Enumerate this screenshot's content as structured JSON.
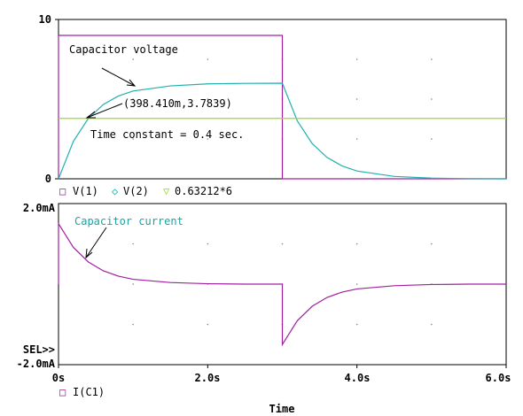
{
  "colors": {
    "v1": "#a020a0",
    "v2": "#20b0b0",
    "ref": "#99dd22",
    "i": "#a020a0",
    "axis": "#000000",
    "grid": "#808080"
  },
  "chart_data": [
    {
      "type": "line",
      "x_unit": "s",
      "xlim": [
        0,
        6.0
      ],
      "ylim": [
        0,
        10
      ],
      "y_ticks": [
        "0",
        "10"
      ],
      "grid": "dotted",
      "series": [
        {
          "name": "V(1)",
          "marker": "□",
          "x": [
            0,
            0,
            3.0,
            3.0,
            6.0
          ],
          "values": [
            0,
            9,
            9,
            0,
            0
          ]
        },
        {
          "name": "V(2)",
          "marker": "◇",
          "x": [
            0,
            0.2,
            0.4,
            0.6,
            0.8,
            1.0,
            1.5,
            2.0,
            2.5,
            3.0,
            3.2,
            3.4,
            3.6,
            3.8,
            4.0,
            4.5,
            5.0,
            5.5,
            6.0
          ],
          "values": [
            0,
            2.36,
            3.79,
            4.66,
            5.19,
            5.51,
            5.83,
            5.96,
            5.99,
            6.0,
            3.64,
            2.21,
            1.34,
            0.81,
            0.49,
            0.15,
            0.04,
            0.01,
            0.0
          ]
        },
        {
          "name": "0.63212*6",
          "marker": "▽",
          "x": [
            0,
            6.0
          ],
          "values": [
            3.79,
            3.79
          ]
        }
      ],
      "annotations": {
        "capacitor_voltage": "Capacitor voltage",
        "point": "(398.410m,3.7839)",
        "time_constant": "Time constant = 0.4 sec."
      }
    },
    {
      "type": "line",
      "x_unit": "s",
      "xlim": [
        0,
        6.0
      ],
      "ylim": [
        -2.0,
        2.0
      ],
      "y_ticks": [
        "2.0mA",
        "-2.0mA"
      ],
      "x_ticks": [
        "0s",
        "2.0s",
        "4.0s",
        "6.0s"
      ],
      "xlabel": "Time",
      "sel_marker": "SEL>>",
      "grid": "dotted",
      "series": [
        {
          "name": "I(C1)",
          "marker": "□",
          "x": [
            0,
            0,
            0.2,
            0.4,
            0.6,
            0.8,
            1.0,
            1.5,
            2.0,
            2.5,
            3.0,
            3.0,
            3.2,
            3.4,
            3.6,
            3.8,
            4.0,
            4.5,
            5.0,
            5.5,
            6.0
          ],
          "values": [
            0,
            1.5,
            0.91,
            0.55,
            0.33,
            0.2,
            0.12,
            0.04,
            0.01,
            0.0,
            0.0,
            -1.5,
            -0.91,
            -0.55,
            -0.33,
            -0.2,
            -0.12,
            -0.04,
            -0.01,
            0.0,
            0.0
          ]
        }
      ],
      "annotations": {
        "capacitor_current": "Capacitor current"
      }
    }
  ]
}
